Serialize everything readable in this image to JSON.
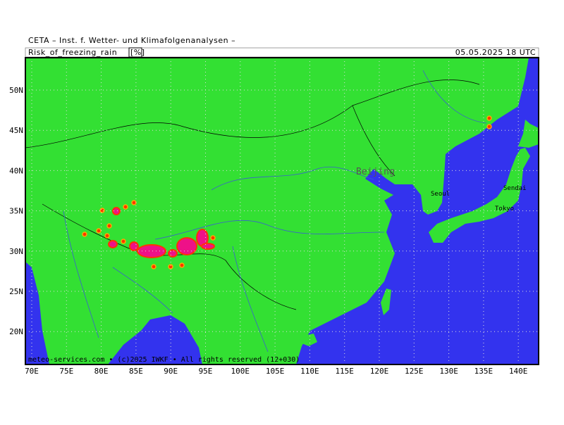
{
  "header": {
    "institute": "CETA – Inst. f. Wetter- und Klimafolgenanalysen –",
    "product": "Risk_of_freezing_rain",
    "unit": "[%]",
    "valid_time": "05.05.2025 18 UTC"
  },
  "map": {
    "lat_labels": [
      "50N",
      "45N",
      "40N",
      "35N",
      "30N",
      "25N",
      "20N"
    ],
    "lon_labels": [
      "70E",
      "75E",
      "80E",
      "85E",
      "90E",
      "95E",
      "100E",
      "105E",
      "110E",
      "115E",
      "120E",
      "125E",
      "130E",
      "135E",
      "140E"
    ],
    "cities": [
      "Beijing",
      "Seoul",
      "Sendai",
      "Tokyo"
    ],
    "footer": "meteo-services.com • (c)2025 IWKF • All rights reserved (12+030)"
  }
}
